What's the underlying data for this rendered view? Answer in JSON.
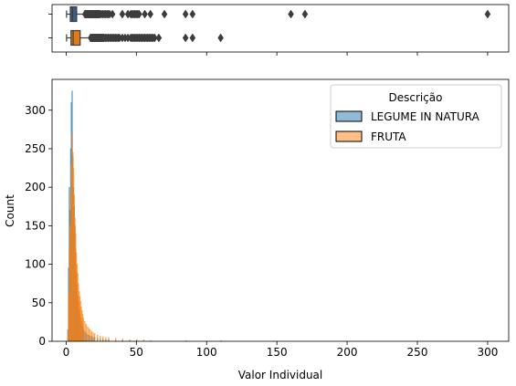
{
  "chart_data": [
    {
      "type": "box",
      "xlim": [
        -10,
        315
      ],
      "series": [
        {
          "name": "LEGUME IN NATURA",
          "color": "#3f5d7d",
          "whisker_low": 0.3,
          "q1": 3,
          "median": 4.5,
          "q3": 7.5,
          "whisker_high": 13,
          "outliers": [
            13.5,
            14,
            14.5,
            15,
            15.5,
            16,
            16.5,
            17,
            17.5,
            18,
            18.5,
            19,
            19.5,
            20,
            20.5,
            21,
            21.5,
            22,
            22.5,
            23,
            23.5,
            24,
            25,
            26,
            27,
            28,
            29,
            30,
            31,
            33,
            40,
            44,
            46,
            47,
            48,
            49,
            50,
            51,
            52,
            56,
            60,
            70,
            85,
            90,
            160,
            170,
            300
          ]
        },
        {
          "name": "FRUTA",
          "color": "#e07b1a",
          "whisker_low": 0.3,
          "q1": 3.5,
          "median": 5,
          "q3": 10,
          "whisker_high": 17,
          "outliers": [
            17.5,
            18,
            18.5,
            19,
            19.5,
            20,
            20.5,
            21,
            21.5,
            22,
            22.5,
            23,
            23.5,
            24,
            24.5,
            25,
            25.5,
            26,
            26.5,
            27,
            28,
            29,
            30,
            31,
            32,
            33,
            34,
            35,
            36,
            37,
            38,
            40,
            42,
            44,
            46,
            47,
            48,
            49,
            50,
            51,
            52,
            53,
            54,
            55,
            56,
            57,
            58,
            59,
            60,
            61,
            62,
            63,
            66,
            85,
            90,
            110
          ]
        }
      ]
    },
    {
      "type": "histogram",
      "xlabel": "Valor Individual",
      "ylabel": "Count",
      "xlim": [
        -10,
        315
      ],
      "ylim": [
        0,
        340
      ],
      "xticks": [
        0,
        50,
        100,
        150,
        200,
        250,
        300
      ],
      "yticks": [
        0,
        50,
        100,
        150,
        200,
        250,
        300
      ],
      "legend": {
        "title": "Descrição",
        "placement": "top-right"
      },
      "series": [
        {
          "name": "LEGUME IN NATURA",
          "color": "#1f77b4",
          "bins": [
            [
              1.0,
              15
            ],
            [
              1.5,
              95
            ],
            [
              2.0,
              200
            ],
            [
              2.5,
              170
            ],
            [
              3.0,
              250
            ],
            [
              3.5,
              310
            ],
            [
              4.0,
              325
            ],
            [
              4.5,
              240
            ],
            [
              5.0,
              200
            ],
            [
              5.5,
              175
            ],
            [
              6.0,
              150
            ],
            [
              6.5,
              120
            ],
            [
              7.0,
              90
            ],
            [
              7.5,
              75
            ],
            [
              8.0,
              60
            ],
            [
              8.5,
              50
            ],
            [
              9.0,
              42
            ],
            [
              9.5,
              36
            ],
            [
              10.0,
              30
            ],
            [
              10.5,
              26
            ],
            [
              11.0,
              22
            ],
            [
              11.5,
              19
            ],
            [
              12.0,
              16
            ],
            [
              13.0,
              13
            ],
            [
              14.0,
              11
            ],
            [
              15.0,
              9
            ],
            [
              16.0,
              8
            ],
            [
              17.0,
              7
            ],
            [
              18.0,
              6
            ],
            [
              19.0,
              5
            ],
            [
              20.0,
              5
            ],
            [
              22.0,
              4
            ],
            [
              24.0,
              3
            ],
            [
              26.0,
              3
            ],
            [
              28.0,
              2
            ],
            [
              30.0,
              2
            ],
            [
              35.0,
              1
            ],
            [
              40.0,
              1
            ],
            [
              45.0,
              1
            ],
            [
              50.0,
              1
            ]
          ]
        },
        {
          "name": "FRUTA",
          "color": "#ff7f0e",
          "bins": [
            [
              1.0,
              10
            ],
            [
              1.5,
              60
            ],
            [
              2.0,
              120
            ],
            [
              2.5,
              150
            ],
            [
              3.0,
              190
            ],
            [
              3.5,
              230
            ],
            [
              4.0,
              270
            ],
            [
              4.5,
              245
            ],
            [
              5.0,
              225
            ],
            [
              5.5,
              190
            ],
            [
              6.0,
              160
            ],
            [
              6.5,
              140
            ],
            [
              7.0,
              115
            ],
            [
              7.5,
              100
            ],
            [
              8.0,
              88
            ],
            [
              8.5,
              75
            ],
            [
              9.0,
              65
            ],
            [
              9.5,
              58
            ],
            [
              10.0,
              52
            ],
            [
              10.5,
              45
            ],
            [
              11.0,
              40
            ],
            [
              11.5,
              35
            ],
            [
              12.0,
              30
            ],
            [
              13.0,
              26
            ],
            [
              14.0,
              22
            ],
            [
              15.0,
              19
            ],
            [
              16.0,
              17
            ],
            [
              17.0,
              15
            ],
            [
              18.0,
              13
            ],
            [
              19.0,
              11
            ],
            [
              20.0,
              10
            ],
            [
              22.0,
              8
            ],
            [
              24.0,
              7
            ],
            [
              26.0,
              6
            ],
            [
              28.0,
              5
            ],
            [
              30.0,
              5
            ],
            [
              35.0,
              4
            ],
            [
              40.0,
              3
            ],
            [
              45.0,
              2
            ],
            [
              50.0,
              2
            ],
            [
              55.0,
              2
            ],
            [
              60.0,
              1
            ],
            [
              85.0,
              1
            ],
            [
              110.0,
              1
            ]
          ]
        }
      ]
    }
  ]
}
